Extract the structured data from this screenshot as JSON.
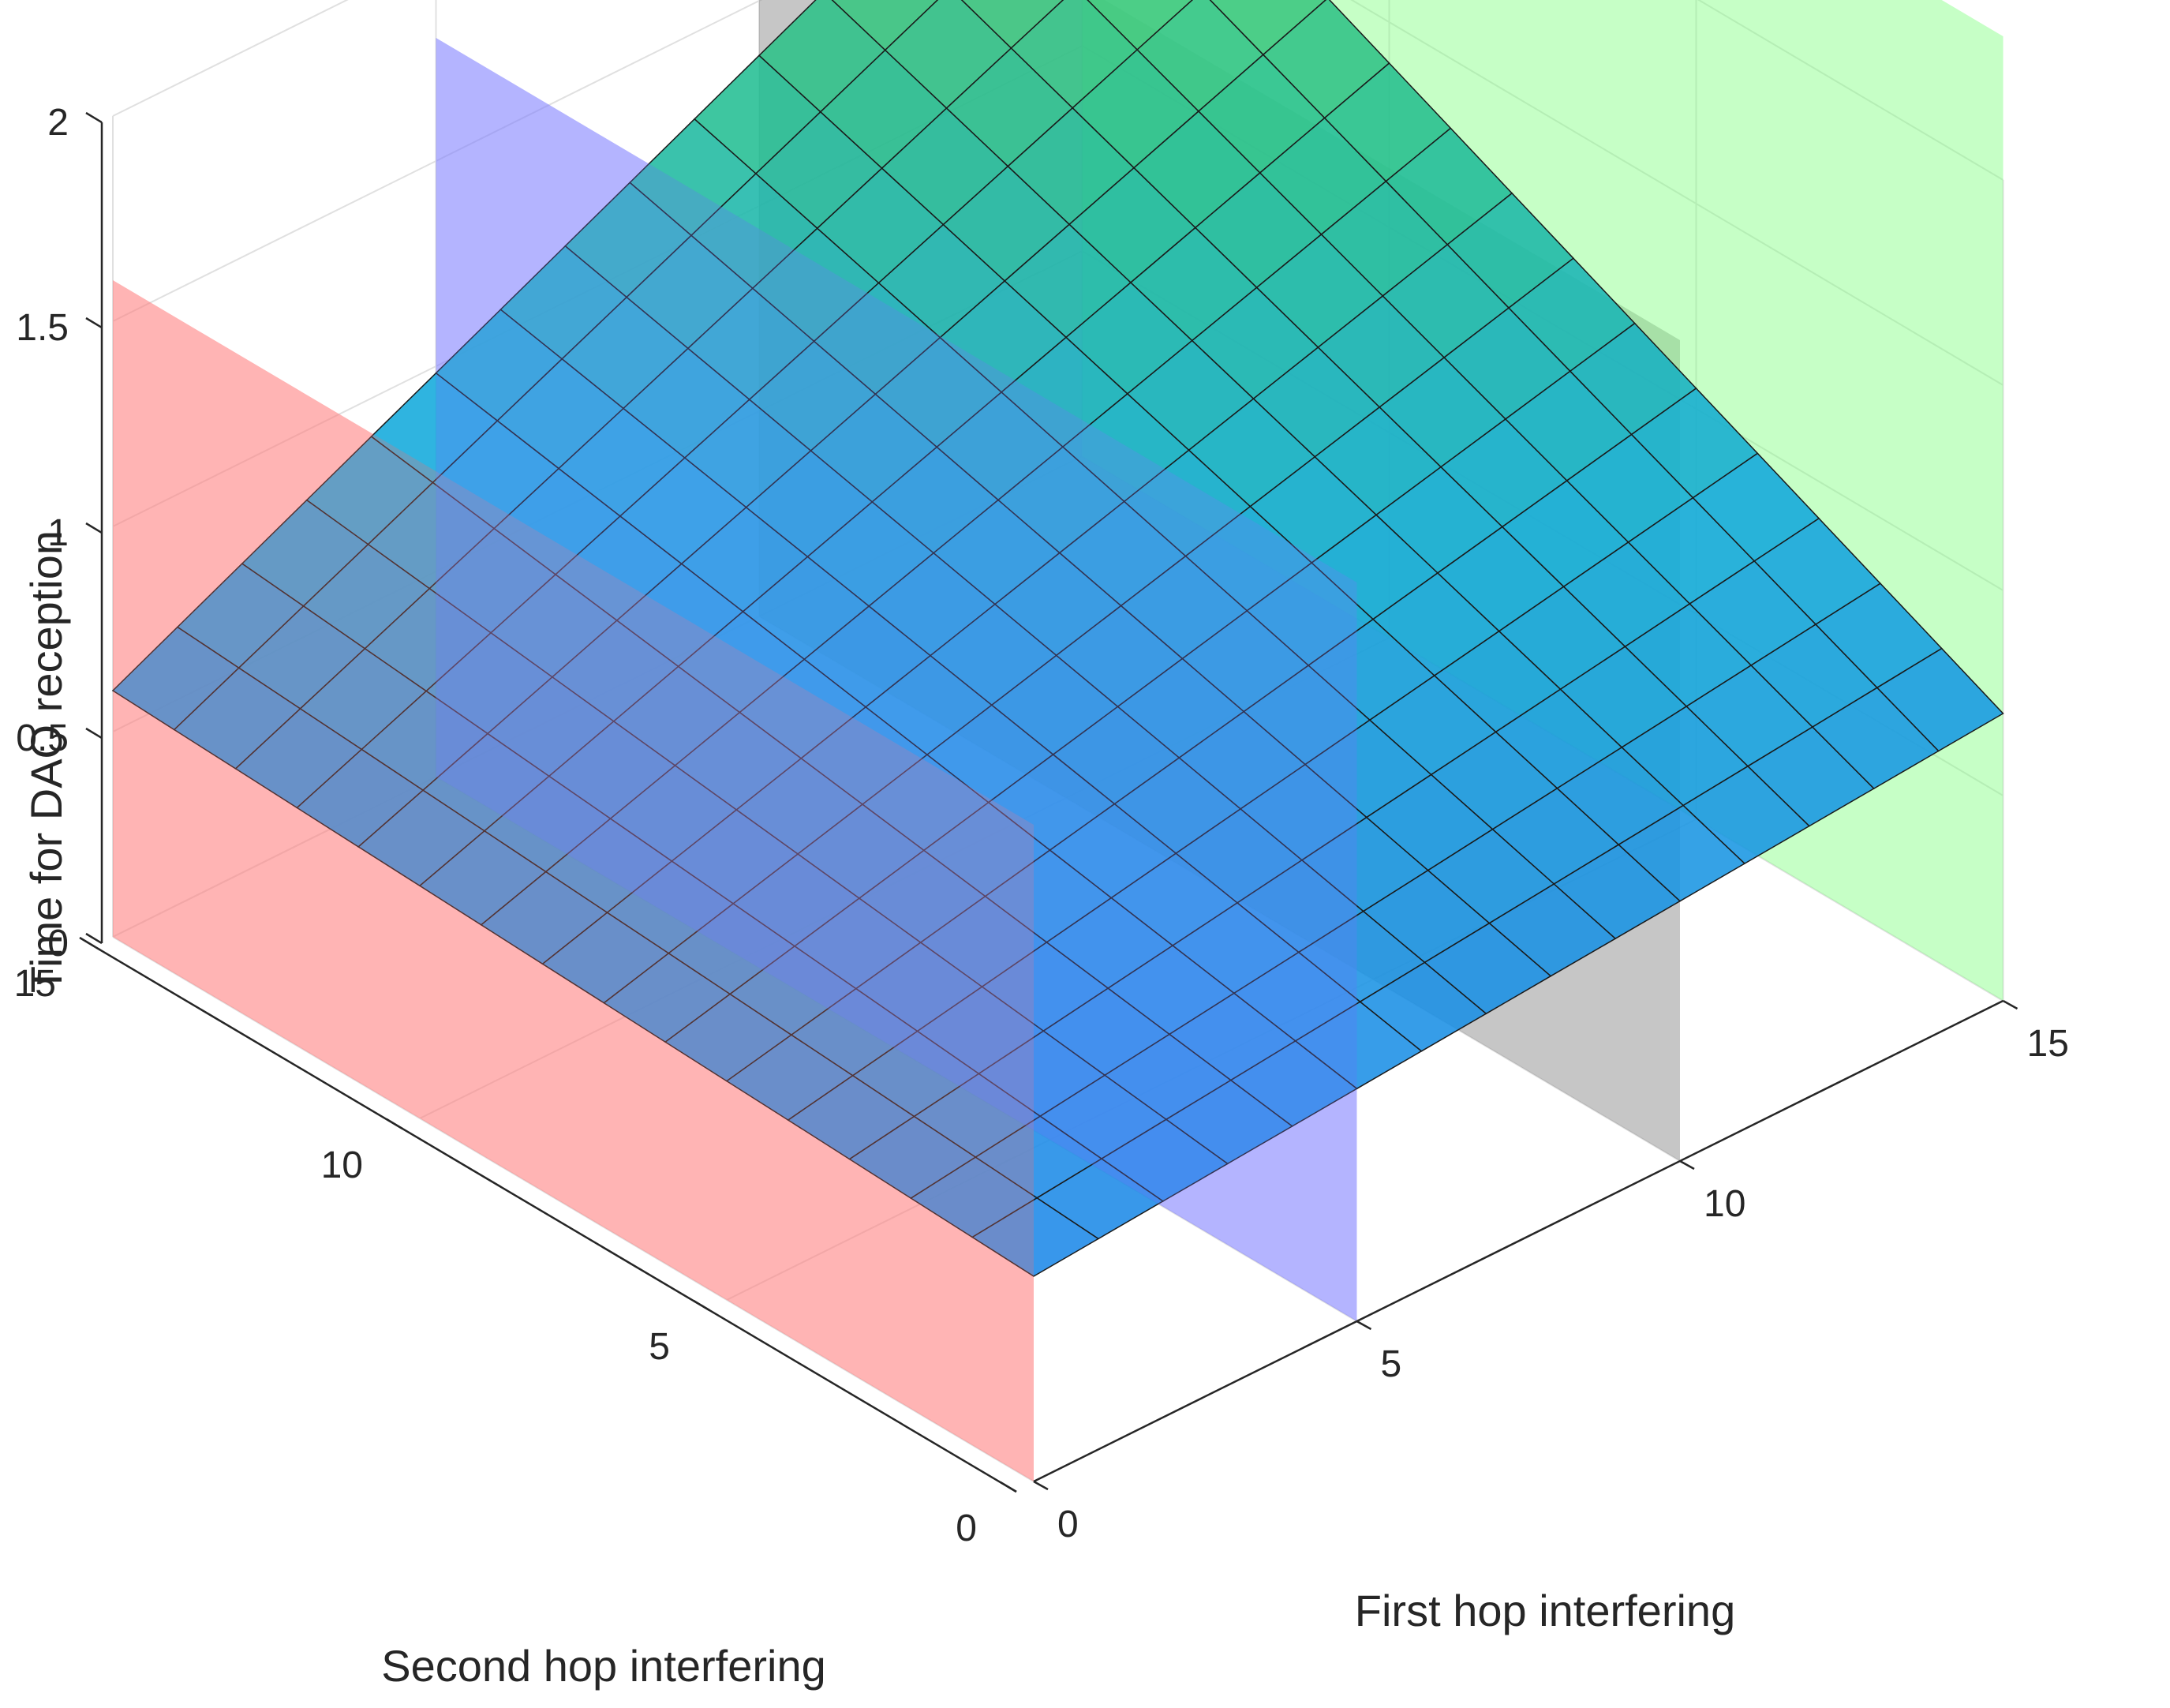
{
  "chart_data": {
    "type": "surface3d",
    "xlabel": "First hop interfering",
    "ylabel": "Second hop interfering",
    "zlabel": "Time for DAO reception",
    "xlim": [
      0,
      15
    ],
    "ylim": [
      0,
      15
    ],
    "zlim": [
      0,
      2
    ],
    "x_ticks": [
      "0",
      "5",
      "10",
      "15"
    ],
    "y_ticks": [
      "0",
      "5",
      "10",
      "15"
    ],
    "z_ticks": [
      "0",
      "0.5",
      "1",
      "1.5",
      "2"
    ],
    "grid": true,
    "colormap": "blue-to-green",
    "surface": {
      "x_range": [
        0,
        15
      ],
      "y_range": [
        0,
        15
      ],
      "steps": 15,
      "z_corners": {
        "x0_y0": 0.5,
        "x15_y0": 0.7,
        "x0_y15": 0.6,
        "x15_y15": 1.75
      }
    },
    "planes": [
      {
        "axis": "x",
        "value": 0,
        "color": "#ff8080",
        "z_range": [
          0,
          1.6
        ]
      },
      {
        "axis": "x",
        "value": 5,
        "color": "#8080ff",
        "z_range": [
          0,
          1.8
        ]
      },
      {
        "axis": "x",
        "value": 10,
        "color": "#808080",
        "z_range": [
          0,
          2
        ]
      },
      {
        "axis": "x",
        "value": 15,
        "color": "#80ff80",
        "z_range": [
          0,
          2.35
        ]
      }
    ]
  }
}
